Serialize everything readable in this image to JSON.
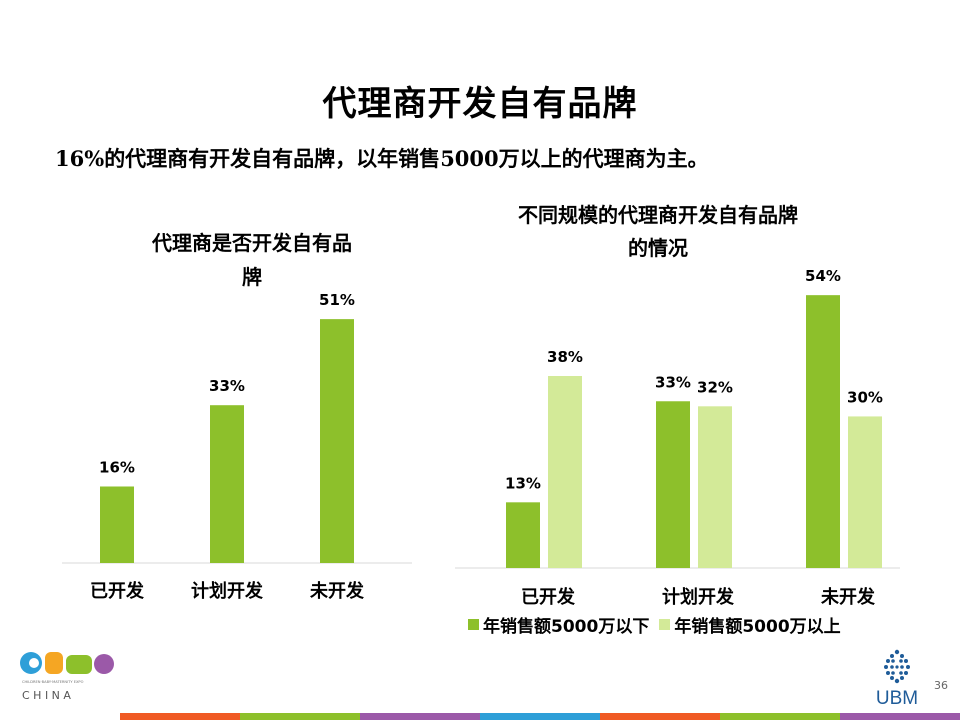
{
  "slide": {
    "title": "代理商开发自有品牌",
    "subtitle_pct": "16%",
    "subtitle_text": "的代理商有开发自有品牌，以年销售",
    "subtitle_num": "5000",
    "subtitle_tail": "万以上的代理商为主。",
    "page_number": "36"
  },
  "colors": {
    "dark_green": "#8dc02b",
    "light_green": "#d3ea98",
    "stripe": [
      "#f05a24",
      "#8dc02b",
      "#9b59a8",
      "#2e9fd8",
      "#f05a24",
      "#8dc02b",
      "#9b59a8"
    ]
  },
  "chart_data": [
    {
      "type": "bar",
      "title_line1": "代理商是否开发自有品",
      "title_line2": "牌",
      "categories": [
        "已开发",
        "计划开发",
        "未开发"
      ],
      "series": [
        {
          "values": [
            16,
            33,
            51
          ],
          "labels": [
            "16%",
            "33%",
            "51%"
          ],
          "color": "#8dc02b"
        }
      ],
      "ylim": [
        0,
        55
      ],
      "grid": false
    },
    {
      "type": "bar",
      "title_line1": "不同规模的代理商开发自有品牌",
      "title_line2": "的情况",
      "categories": [
        "已开发",
        "计划开发",
        "未开发"
      ],
      "series": [
        {
          "name": "年销售额5000万以下",
          "values": [
            13,
            33,
            54
          ],
          "labels": [
            "13%",
            "33%",
            "54%"
          ],
          "color": "#8dc02b"
        },
        {
          "name": "年销售额5000万以上",
          "values": [
            38,
            32,
            30
          ],
          "labels": [
            "38%",
            "32%",
            "30%"
          ],
          "color": "#d3ea98"
        }
      ],
      "ylim": [
        0,
        57
      ],
      "grid": false,
      "legend": "bottom"
    }
  ],
  "logos": {
    "cbme_letters": "CBME",
    "cbme_small": "CHILDREN·BABY·MATERNITY EXPO",
    "cbme_china": "C H I N A",
    "ubm": "UBM"
  }
}
